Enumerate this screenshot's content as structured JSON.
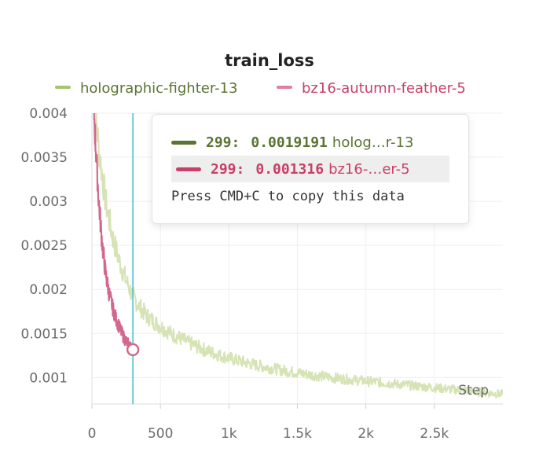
{
  "chart_data": {
    "type": "line",
    "title": "train_loss",
    "xlabel": "Step",
    "ylabel": "",
    "xlim": [
      0,
      3000
    ],
    "ylim": [
      0.0007,
      0.004
    ],
    "x_ticks": [
      0,
      500,
      1000,
      1500,
      2000,
      2500
    ],
    "x_tick_labels": [
      "0",
      "500",
      "1k",
      "1.5k",
      "2k",
      "2.5k"
    ],
    "y_ticks": [
      0.001,
      0.0015,
      0.002,
      0.0025,
      0.003,
      0.0035,
      0.004
    ],
    "y_tick_labels": [
      "0.001",
      "0.0015",
      "0.002",
      "0.0025",
      "0.003",
      "0.0035",
      "0.004"
    ],
    "grid": true,
    "legend_position": "top",
    "hover_step": 299,
    "series": [
      {
        "name": "holographic-fighter-13",
        "color": "#d5e3b5",
        "legend_color": "#a9c46c",
        "text_color": "#5b7333",
        "x": [
          0,
          50,
          100,
          150,
          200,
          250,
          299,
          350,
          400,
          500,
          600,
          700,
          800,
          900,
          1000,
          1200,
          1400,
          1600,
          1800,
          2000,
          2200,
          2400,
          2600,
          2800,
          3000
        ],
        "values": [
          0.0045,
          0.0036,
          0.003,
          0.0026,
          0.00232,
          0.0021,
          0.0019191,
          0.0018,
          0.0017,
          0.00158,
          0.00148,
          0.0014,
          0.00133,
          0.00127,
          0.00122,
          0.00114,
          0.00108,
          0.00103,
          0.00099,
          0.00096,
          0.00093,
          0.0009,
          0.00087,
          0.00084,
          0.00081
        ]
      },
      {
        "name": "bz16-autumn-feather-5",
        "color": "#d2698c",
        "legend_color": "#e07fa0",
        "text_color": "#c83f68",
        "x": [
          0,
          25,
          50,
          75,
          100,
          125,
          150,
          175,
          200,
          225,
          250,
          275,
          299
        ],
        "values": [
          0.0045,
          0.0037,
          0.003,
          0.00252,
          0.00218,
          0.00196,
          0.0018,
          0.00167,
          0.00157,
          0.00148,
          0.00141,
          0.00136,
          0.001316
        ]
      }
    ]
  },
  "tooltip": {
    "rows": [
      {
        "step": "299:",
        "value": "0.0019191",
        "label": "holog…r-13"
      },
      {
        "step": "299:",
        "value": "0.001316",
        "label": "bz16-…er-5"
      }
    ],
    "hint": "Press CMD+C to copy this data"
  }
}
